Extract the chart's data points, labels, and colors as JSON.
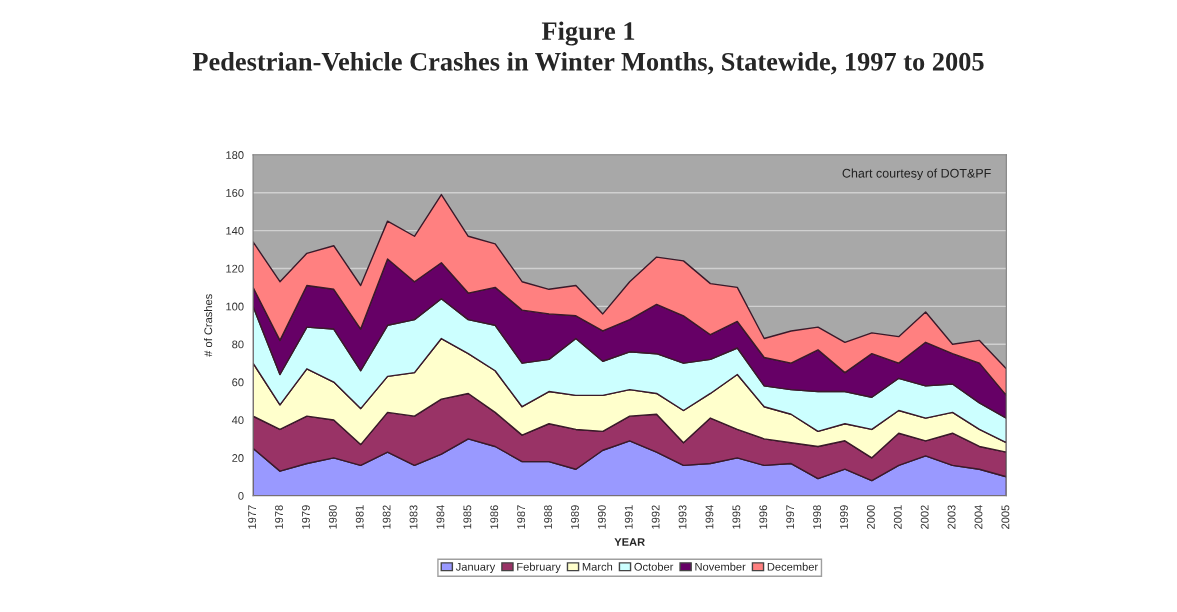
{
  "chart_data": {
    "type": "area",
    "stacked": true,
    "title": "Figure 1",
    "subtitle": "Pedestrian-Vehicle Crashes in Winter Months, Statewide, 1997 to 2005",
    "xlabel": "YEAR",
    "ylabel": "# of Crashes",
    "annotations": [
      "Chart courtesy of DOT&PF"
    ],
    "categories": [
      "1977",
      "1978",
      "1979",
      "1980",
      "1981",
      "1982",
      "1983",
      "1984",
      "1985",
      "1986",
      "1987",
      "1988",
      "1989",
      "1990",
      "1991",
      "1992",
      "1993",
      "1994",
      "1995",
      "1996",
      "1997",
      "1998",
      "1999",
      "2000",
      "2001",
      "2002",
      "2003",
      "2004",
      "2005"
    ],
    "series": [
      {
        "name": "January",
        "color": "#9999ff",
        "values": [
          25,
          13,
          17,
          20,
          16,
          23,
          16,
          22,
          30,
          26,
          18,
          18,
          14,
          24,
          29,
          23,
          16,
          17,
          20,
          16,
          17,
          9,
          14,
          8,
          16,
          21,
          16,
          14,
          10
        ]
      },
      {
        "name": "February",
        "color": "#993366",
        "values": [
          17,
          22,
          25,
          20,
          11,
          21,
          26,
          29,
          24,
          18,
          14,
          20,
          21,
          10,
          13,
          20,
          12,
          24,
          15,
          14,
          11,
          17,
          15,
          12,
          17,
          8,
          17,
          12,
          13
        ]
      },
      {
        "name": "March",
        "color": "#ffffcc",
        "values": [
          28,
          13,
          25,
          20,
          19,
          19,
          23,
          32,
          21,
          22,
          15,
          17,
          18,
          19,
          14,
          11,
          17,
          13,
          29,
          17,
          15,
          8,
          9,
          15,
          12,
          12,
          11,
          9,
          5
        ]
      },
      {
        "name": "October",
        "color": "#ccffff",
        "values": [
          30,
          16,
          22,
          28,
          20,
          27,
          28,
          21,
          18,
          24,
          23,
          17,
          30,
          18,
          20,
          21,
          25,
          18,
          14,
          11,
          13,
          21,
          17,
          17,
          17,
          17,
          15,
          14,
          13
        ]
      },
      {
        "name": "November",
        "color": "#660066",
        "values": [
          10,
          18,
          22,
          21,
          22,
          35,
          20,
          19,
          14,
          20,
          28,
          24,
          12,
          16,
          17,
          26,
          25,
          13,
          14,
          15,
          14,
          22,
          10,
          23,
          8,
          23,
          16,
          21,
          12
        ]
      },
      {
        "name": "December",
        "color": "#ff8080",
        "values": [
          24,
          31,
          17,
          23,
          23,
          20,
          24,
          36,
          30,
          23,
          15,
          13,
          16,
          9,
          20,
          25,
          29,
          27,
          18,
          10,
          17,
          12,
          16,
          11,
          14,
          16,
          5,
          12,
          14
        ]
      }
    ],
    "ylim": [
      0,
      180
    ],
    "yticks": [
      0,
      20,
      40,
      60,
      80,
      100,
      120,
      140,
      160,
      180
    ],
    "grid": "y",
    "legend": "bottom"
  }
}
